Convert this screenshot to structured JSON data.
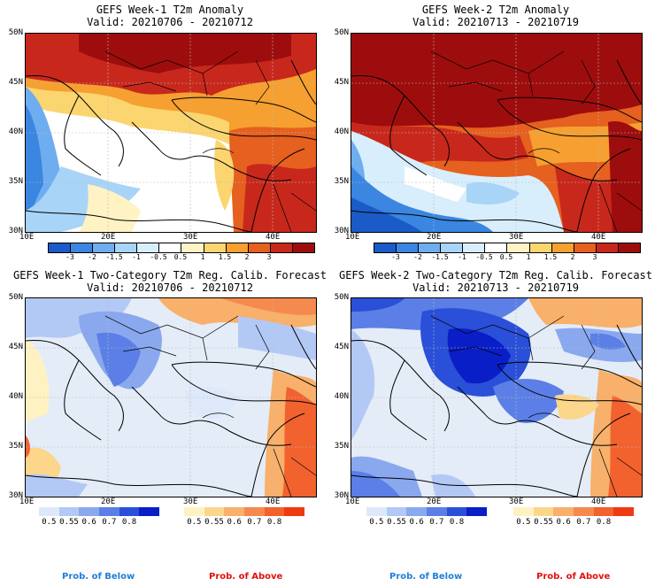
{
  "panels": [
    {
      "title": "GEFS Week-1 T2m Anomaly",
      "valid": "Valid: 20210706 - 20210712"
    },
    {
      "title": "GEFS Week-2 T2m Anomaly",
      "valid": "Valid: 20210713 - 20210719"
    },
    {
      "title": "GEFS Week-1 Two-Category T2m Reg. Calib. Forecast",
      "valid": "Valid: 20210706 - 20210712"
    },
    {
      "title": "GEFS Week-2 Two-Category T2m Reg. Calib. Forecast",
      "valid": "Valid: 20210713 - 20210719"
    }
  ],
  "lat_labels": [
    "50N",
    "45N",
    "40N",
    "35N",
    "30N"
  ],
  "lon_labels": [
    "10E",
    "20E",
    "30E",
    "40E"
  ],
  "anomaly_colorbar": {
    "colors": [
      "#1a5bc8",
      "#3a86e0",
      "#6eaef0",
      "#a8d4f7",
      "#d8eefc",
      "#ffffff",
      "#fff3c4",
      "#fbd56f",
      "#f5a030",
      "#e6601f",
      "#c8281c",
      "#9e0d0d"
    ],
    "labels": [
      "-3",
      "-2",
      "-1.5",
      "-1",
      "-0.5",
      "0.5",
      "1",
      "1.5",
      "2",
      "3"
    ]
  },
  "prob_below_colorbar": {
    "colors": [
      "#dde9fb",
      "#b3c9f5",
      "#8aa8ee",
      "#5b7fe6",
      "#2a4fd8",
      "#0a1ec8"
    ],
    "labels": [
      "0.5",
      "0.55",
      "0.6",
      "0.7",
      "0.8"
    ]
  },
  "prob_above_colorbar": {
    "colors": [
      "#fff2c2",
      "#fbd68b",
      "#f8b06a",
      "#f58a4e",
      "#f2622e",
      "#ee3a12"
    ],
    "labels": [
      "0.5",
      "0.55",
      "0.6",
      "0.7",
      "0.8"
    ]
  },
  "legend": {
    "below": "Prob. of Below",
    "above": "Prob. of Above",
    "below_color": "#1e7fd8",
    "above_color": "#e01010"
  }
}
